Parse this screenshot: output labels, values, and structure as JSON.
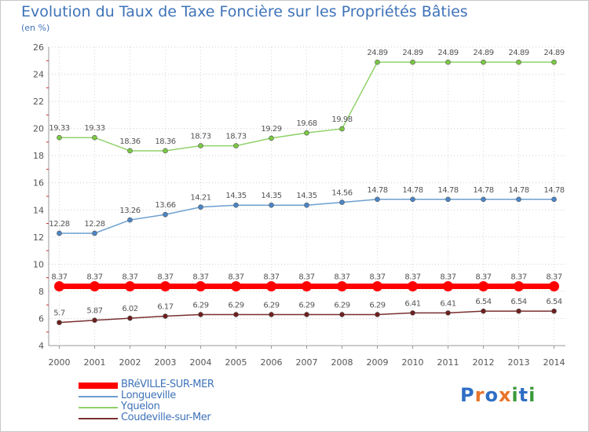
{
  "title": "Evolution du Taux de Taxe Foncière sur les Propriétés Bâties",
  "unit": "(en %)",
  "logo": [
    "P",
    "r",
    "o",
    "x",
    "i",
    "t",
    "i"
  ],
  "logo_colors": [
    "#2f6fc4",
    "#e8742a",
    "#2f6fc4",
    "#e8742a",
    "#3a9a3a",
    "#2f6fc4",
    "#3a9a3a"
  ],
  "chart_data": {
    "type": "line",
    "title": "Evolution du Taux de Taxe Foncière sur les Propriétés Bâties",
    "ylabel": "(en %)",
    "ylim": [
      4,
      26
    ],
    "yticks": [
      4,
      6,
      8,
      10,
      12,
      14,
      16,
      18,
      20,
      22,
      24,
      26
    ],
    "categories": [
      "2000",
      "2001",
      "2002",
      "2003",
      "2004",
      "2005",
      "2006",
      "2007",
      "2008",
      "2009",
      "2010",
      "2011",
      "2012",
      "2013",
      "2014"
    ],
    "series": [
      {
        "name": "BRéVILLE-SUR-MER",
        "color": "#ff0000",
        "markerColor": "#ff0000",
        "thick": true,
        "values": [
          8.37,
          8.37,
          8.37,
          8.37,
          8.37,
          8.37,
          8.37,
          8.37,
          8.37,
          8.37,
          8.37,
          8.37,
          8.37,
          8.37,
          8.37
        ],
        "labels": [
          "8.37",
          "8.37",
          "8.37",
          "8.37",
          "8.37",
          "8.37",
          "8.37",
          "8.37",
          "8.37",
          "8.37",
          "8.37",
          "8.37",
          "8.37",
          "8.37",
          "8.37"
        ]
      },
      {
        "name": "Longueville",
        "color": "#6c9fcf",
        "markerColor": "#4a86c8",
        "thick": false,
        "values": [
          12.28,
          12.28,
          13.26,
          13.66,
          14.21,
          14.35,
          14.35,
          14.35,
          14.56,
          14.78,
          14.78,
          14.78,
          14.78,
          14.78,
          14.78
        ],
        "labels": [
          "12.28",
          "12.28",
          "13.26",
          "13.66",
          "14.21",
          "14.35",
          "14.35",
          "14.35",
          "14.56",
          "14.78",
          "14.78",
          "14.78",
          "14.78",
          "14.78",
          "14.78"
        ]
      },
      {
        "name": "Yquelon",
        "color": "#90d26a",
        "markerColor": "#7ac943",
        "thick": false,
        "values": [
          19.33,
          19.33,
          18.36,
          18.36,
          18.73,
          18.73,
          19.29,
          19.68,
          19.98,
          24.89,
          24.89,
          24.89,
          24.89,
          24.89,
          24.89
        ],
        "labels": [
          "19.33",
          "19.33",
          "18.36",
          "18.36",
          "18.73",
          "18.73",
          "19.29",
          "19.68",
          "19.98",
          "24.89",
          "24.89",
          "24.89",
          "24.89",
          "24.89",
          "24.89"
        ]
      },
      {
        "name": "Coudeville-sur-Mer",
        "color": "#7a2f2f",
        "markerColor": "#6e1f1f",
        "thick": false,
        "values": [
          5.7,
          5.87,
          6.02,
          6.17,
          6.29,
          6.29,
          6.29,
          6.29,
          6.29,
          6.29,
          6.41,
          6.41,
          6.54,
          6.54,
          6.54
        ],
        "labels": [
          "5.7",
          "5.87",
          "6.02",
          "6.17",
          "6.29",
          "6.29",
          "6.29",
          "6.29",
          "6.29",
          "6.29",
          "6.41",
          "6.41",
          "6.54",
          "6.54",
          "6.54"
        ]
      }
    ]
  }
}
